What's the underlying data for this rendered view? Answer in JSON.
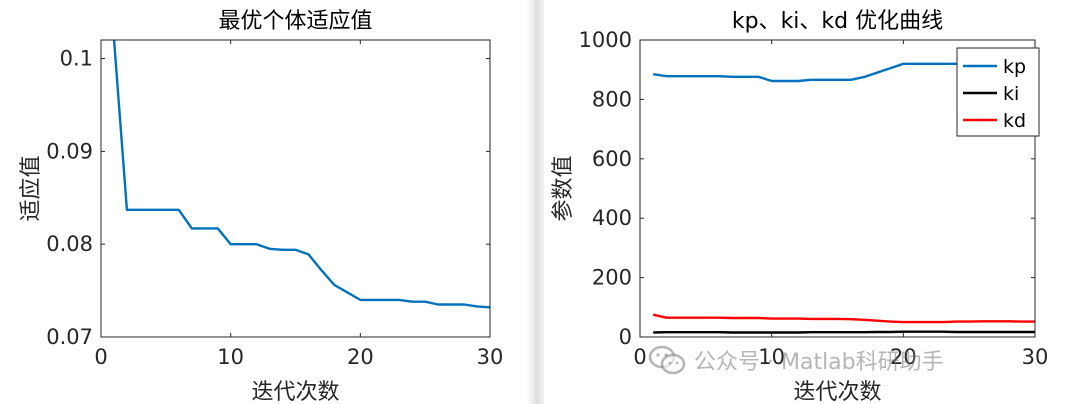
{
  "chart_data": [
    {
      "type": "line",
      "title": "最优个体适应值",
      "xlabel": "迭代次数",
      "ylabel": "适应值",
      "xlim": [
        0,
        30
      ],
      "ylim": [
        0.07,
        0.102
      ],
      "xticks": [
        "0",
        "10",
        "20",
        "30"
      ],
      "yticks": [
        "0.07",
        "0.08",
        "0.09",
        "0.1"
      ],
      "grid": false,
      "series": [
        {
          "color": "#0072BD",
          "x": [
            1,
            2,
            3,
            4,
            5,
            6,
            7,
            8,
            9,
            10,
            11,
            12,
            13,
            14,
            15,
            16,
            17,
            18,
            19,
            20,
            21,
            22,
            23,
            24,
            25,
            26,
            27,
            28,
            29,
            30
          ],
          "y": [
            0.1021,
            0.0837,
            0.0837,
            0.0837,
            0.0837,
            0.0837,
            0.0817,
            0.0817,
            0.0817,
            0.08,
            0.08,
            0.08,
            0.0795,
            0.0794,
            0.0794,
            0.0789,
            0.0772,
            0.0756,
            0.0748,
            0.074,
            0.074,
            0.074,
            0.074,
            0.0738,
            0.0738,
            0.0735,
            0.0735,
            0.0735,
            0.0733,
            0.0732
          ]
        }
      ]
    },
    {
      "type": "line",
      "title": "kp、ki、kd 优化曲线",
      "xlabel": "迭代次数",
      "ylabel": "参数值",
      "xlim": [
        0,
        30
      ],
      "ylim": [
        0,
        1000
      ],
      "xticks": [
        "0",
        "10",
        "20",
        "30"
      ],
      "yticks": [
        "0",
        "200",
        "400",
        "600",
        "800",
        "1000"
      ],
      "grid": false,
      "legend": "top-right",
      "series": [
        {
          "name": "kp",
          "color": "#0072BD",
          "x": [
            1,
            2,
            3,
            4,
            5,
            6,
            7,
            8,
            9,
            10,
            11,
            12,
            13,
            14,
            15,
            16,
            17,
            18,
            19,
            20,
            21,
            22,
            23,
            24,
            25,
            26,
            27,
            28,
            29,
            30
          ],
          "y": [
            885,
            878,
            878,
            878,
            878,
            878,
            876,
            876,
            876,
            862,
            862,
            862,
            866,
            866,
            866,
            866,
            875,
            890,
            905,
            920,
            920,
            920,
            920,
            920,
            920,
            920,
            920,
            920,
            920,
            920
          ]
        },
        {
          "name": "ki",
          "color": "#000000",
          "x": [
            1,
            2,
            3,
            4,
            5,
            6,
            7,
            8,
            9,
            10,
            11,
            12,
            13,
            14,
            15,
            16,
            17,
            18,
            19,
            20,
            21,
            22,
            23,
            24,
            25,
            26,
            27,
            28,
            29,
            30
          ],
          "y": [
            15,
            16,
            16,
            16,
            16,
            16,
            15,
            15,
            15,
            15,
            15,
            15,
            16,
            16,
            16,
            16,
            16,
            17,
            17,
            18,
            18,
            18,
            18,
            17,
            17,
            17,
            17,
            17,
            17,
            17
          ]
        },
        {
          "name": "kd",
          "color": "#FF0000",
          "x": [
            1,
            2,
            3,
            4,
            5,
            6,
            7,
            8,
            9,
            10,
            11,
            12,
            13,
            14,
            15,
            16,
            17,
            18,
            19,
            20,
            21,
            22,
            23,
            24,
            25,
            26,
            27,
            28,
            29,
            30
          ],
          "y": [
            75,
            65,
            65,
            65,
            65,
            65,
            64,
            64,
            64,
            62,
            62,
            62,
            61,
            61,
            61,
            60,
            58,
            55,
            52,
            50,
            50,
            50,
            50,
            52,
            52,
            53,
            53,
            53,
            52,
            52
          ]
        }
      ]
    }
  ],
  "watermark": {
    "icon": "wechat-icon",
    "text": "公众号 · Matlab科研助手"
  }
}
